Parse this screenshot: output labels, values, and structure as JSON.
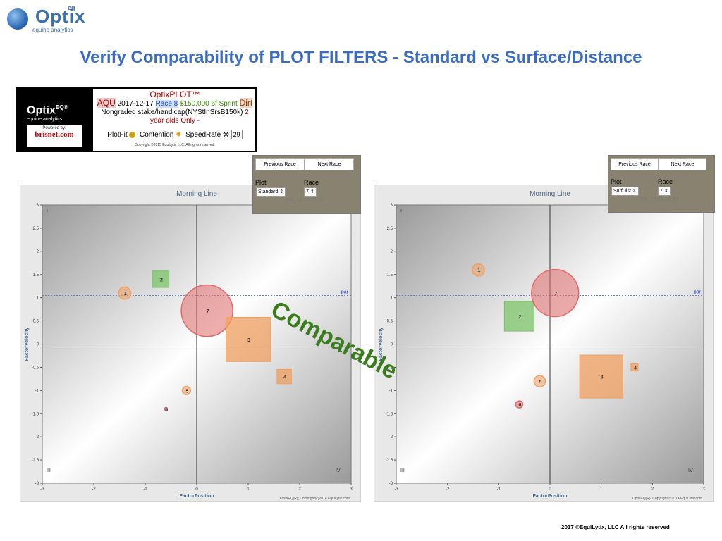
{
  "logo": {
    "brand": "Optix",
    "sup": "eq",
    "tagline": "equine analytics"
  },
  "page_title": "Verify Comparability of PLOT FILTERS -  Standard vs Surface/Distance",
  "info": {
    "header": "OptixPLOT™",
    "logo_text": "Optix",
    "logo_sup": "EQ®",
    "logo_sub": "equine analytics",
    "powered_by": "Powered by:",
    "brisnet": "brisnet.com",
    "track": "AQU",
    "date": "2017-12-17",
    "race": "Race 8",
    "purse_dist": "$150,000 6f Sprint",
    "surface": "Dirt",
    "conditions": "Nongraded stake/handicap(NYStInSrsB150k)",
    "age_restriction": "2 year olds Only -",
    "legend_plotfit": "PlotFit",
    "legend_contention": "Contention",
    "legend_speedrate": "SpeedRate",
    "speedrate_value": "29",
    "copyright": "Copyright ©2015 EquiLytix LLC. All rights reserved."
  },
  "left_nav": {
    "prev": "Previous Race",
    "next": "Next Race",
    "plot_label": "Plot",
    "race_label": "Race",
    "plot_value": "Standard",
    "race_value": "7",
    "code": "FG_17-12-17_07"
  },
  "right_nav": {
    "prev": "Previous Race",
    "next": "Next Race",
    "plot_label": "Plot",
    "race_label": "Race",
    "plot_value": "SurfDist",
    "race_value": "7",
    "code": "FG_17-12-17_07"
  },
  "comparable_label": "Comparable",
  "footer": "2017 ©EquiLytix, LLC All rights reserved",
  "colors": {
    "title_blue": "#3a6cc4",
    "orange": "#f0a060",
    "green": "#7cc36a",
    "red": "#e06a6a",
    "comparable_green": "#3b7c1f"
  },
  "chart_data": [
    {
      "type": "scatter",
      "title": "Morning Line",
      "xlabel": "FactorPosition",
      "ylabel": "FactorVelocity",
      "xlim": [
        -3,
        3
      ],
      "ylim": [
        -3,
        3
      ],
      "xticks": [
        "-3",
        "-2",
        "-1",
        "0",
        "1",
        "2",
        "3"
      ],
      "yticks": [
        "3",
        "2.5",
        "2",
        "1.5",
        "1",
        "0.5",
        "0",
        "-0.5",
        "-1",
        "-1.5",
        "-2",
        "-2.5",
        "-3"
      ],
      "quadrants": {
        "I": "I",
        "III": "III",
        "IV": "IV"
      },
      "par_label": "par",
      "par_value": 1.05,
      "credit": "OptixEQ(R); Copyright(c)2014 EquiLytix.com",
      "points": [
        {
          "label": "1",
          "x": -1.4,
          "y": 1.1,
          "size": 0.12,
          "shape": "circle",
          "color": "#f0a060"
        },
        {
          "label": "2",
          "x": -0.7,
          "y": 1.4,
          "size": 0.16,
          "shape": "square",
          "color": "#7cc36a"
        },
        {
          "label": "7",
          "x": 0.2,
          "y": 0.72,
          "size": 0.5,
          "shape": "circle",
          "color": "#e06a6a"
        },
        {
          "label": "3",
          "x": 1.0,
          "y": 0.1,
          "size": 0.43,
          "shape": "square",
          "color": "#f0a060"
        },
        {
          "label": "4",
          "x": 1.7,
          "y": -0.7,
          "size": 0.14,
          "shape": "square",
          "color": "#f0a060"
        },
        {
          "label": "5",
          "x": -0.2,
          "y": -1.0,
          "size": 0.08,
          "shape": "circle",
          "color": "#f0a060"
        },
        {
          "label": "6",
          "x": -0.6,
          "y": -1.4,
          "size": 0.02,
          "shape": "circle",
          "color": "#e06a6a"
        }
      ]
    },
    {
      "type": "scatter",
      "title": "Morning Line",
      "xlabel": "FactorPosition",
      "ylabel": "FactorVelocity",
      "xlim": [
        -3,
        3
      ],
      "ylim": [
        -3,
        3
      ],
      "xticks": [
        "-3",
        "-2",
        "-1",
        "0",
        "1",
        "2",
        "3"
      ],
      "yticks": [
        "3",
        "2.5",
        "2",
        "1.5",
        "1",
        "0.5",
        "0",
        "-0.5",
        "-1",
        "-1.5",
        "-2",
        "-2.5",
        "-3"
      ],
      "quadrants": {
        "I": "I",
        "III": "III",
        "IV": "IV"
      },
      "par_label": "par",
      "par_value": 1.05,
      "credit": "OptixEQ(R); Copyright(c)2014 EquiLytix.com",
      "points": [
        {
          "label": "1",
          "x": -1.4,
          "y": 1.6,
          "size": 0.12,
          "shape": "circle",
          "color": "#f0a060"
        },
        {
          "label": "2",
          "x": -0.6,
          "y": 0.6,
          "size": 0.29,
          "shape": "square",
          "color": "#7cc36a"
        },
        {
          "label": "7",
          "x": 0.1,
          "y": 1.1,
          "size": 0.46,
          "shape": "circle",
          "color": "#e06a6a"
        },
        {
          "label": "3",
          "x": 1.0,
          "y": -0.7,
          "size": 0.42,
          "shape": "square",
          "color": "#f0a060"
        },
        {
          "label": "4",
          "x": 1.65,
          "y": -0.5,
          "size": 0.07,
          "shape": "square",
          "color": "#f0a060"
        },
        {
          "label": "5",
          "x": -0.2,
          "y": -0.8,
          "size": 0.11,
          "shape": "circle",
          "color": "#f0a060"
        },
        {
          "label": "6",
          "x": -0.6,
          "y": -1.3,
          "size": 0.07,
          "shape": "circle",
          "color": "#e06a6a"
        }
      ]
    }
  ]
}
